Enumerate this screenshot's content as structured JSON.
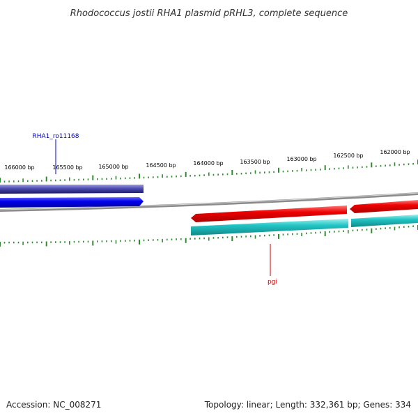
{
  "title": "Rhodococcus jostii RHA1 plasmid pRHL3, complete sequence",
  "footer": {
    "accession": "Accession: NC_008271",
    "summary": "Topology: linear; Length: 332,361 bp; Genes: 334"
  },
  "ticks": [
    "166000 bp",
    "165500 bp",
    "165000 bp",
    "164500 bp",
    "164000 bp",
    "163500 bp",
    "163000 bp",
    "162500 bp",
    "162000 bp"
  ],
  "gene_labels": {
    "blue": "RHA1_ro11168",
    "red": "pgi"
  },
  "colors": {
    "backbone": "#8c8c8c",
    "tick_green": "#2e8b2e",
    "blue_gene": "#0000ee",
    "blue_cds": "#3333aa",
    "red_gene": "#ee0000",
    "cyan_cds": "#22c4c4",
    "label_blue": "#0000cc",
    "label_red": "#cc0000"
  }
}
